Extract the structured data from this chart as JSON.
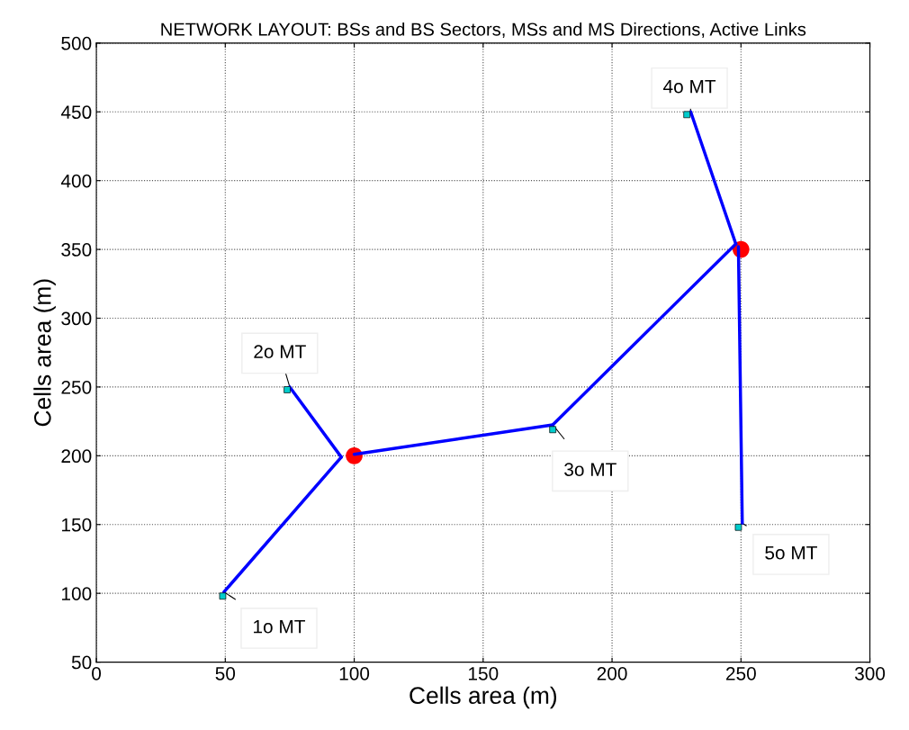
{
  "chart_data": {
    "type": "line",
    "title": "NETWORK LAYOUT: BSs and BS Sectors, MSs and MS Directions, Active Links",
    "xlabel": "Cells area (m)",
    "ylabel": "Cells area (m)",
    "xlim": [
      0,
      300
    ],
    "ylim": [
      50,
      500
    ],
    "xticks": [
      0,
      50,
      100,
      150,
      200,
      250,
      300
    ],
    "yticks": [
      50,
      100,
      150,
      200,
      250,
      300,
      350,
      400,
      450,
      500
    ],
    "grid": true,
    "legend": false,
    "line_style": "solid",
    "series": [
      {
        "color": "#0000ff",
        "x": [
          49.5,
          95
        ],
        "values": [
          101,
          199
        ]
      },
      {
        "color": "#0000ff",
        "x": [
          75,
          95
        ],
        "values": [
          250,
          199
        ]
      },
      {
        "color": "#0000ff",
        "x": [
          177,
          100
        ],
        "values": [
          222.5,
          201
        ]
      },
      {
        "color": "#0000ff",
        "x": [
          177,
          248
        ],
        "values": [
          222.5,
          354
        ]
      },
      {
        "color": "#0000ff",
        "x": [
          230.5,
          248
        ],
        "values": [
          450,
          354
        ]
      },
      {
        "color": "#0000ff",
        "x": [
          250.5,
          249
        ],
        "values": [
          151,
          352
        ]
      },
      {
        "type": "scatter",
        "marker": "circle",
        "color": "#ff0000",
        "x": [
          100,
          250
        ],
        "values": [
          200,
          350
        ]
      },
      {
        "type": "scatter",
        "marker": "square",
        "color": "#00cccc",
        "x": [
          49,
          74,
          177,
          229,
          249
        ],
        "values": [
          98,
          248,
          219,
          448,
          148
        ]
      }
    ],
    "annotations": [
      {
        "text": "1o MT",
        "x": 49.5,
        "y": 101
      },
      {
        "text": "2o MT",
        "x": 75,
        "y": 250
      },
      {
        "text": "3o MT",
        "x": 177,
        "y": 222.5
      },
      {
        "text": "4o MT",
        "x": 230.5,
        "y": 450
      },
      {
        "text": "5o MT",
        "x": 250.5,
        "y": 151
      }
    ]
  }
}
